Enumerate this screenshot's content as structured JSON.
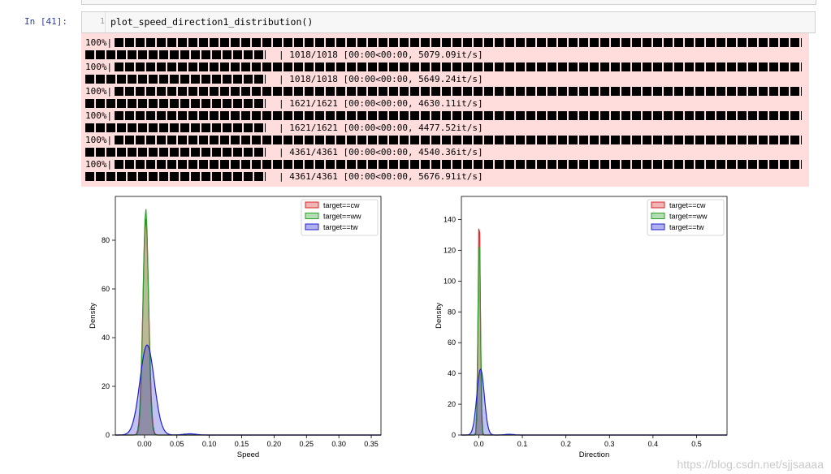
{
  "cell": {
    "prompt": "In  [41]:",
    "line_number": "1",
    "code": "plot_speed_direction1_distribution()"
  },
  "progress": [
    {
      "percent": "100%|",
      "stats": "| 1018/1018 [00:00<00:00, 5079.09it/s]"
    },
    {
      "percent": "100%|",
      "stats": "| 1018/1018 [00:00<00:00, 5649.24it/s]"
    },
    {
      "percent": "100%|",
      "stats": "| 1621/1621 [00:00<00:00, 4630.11it/s]"
    },
    {
      "percent": "100%|",
      "stats": "| 1621/1621 [00:00<00:00, 4477.52it/s]"
    },
    {
      "percent": "100%|",
      "stats": "| 4361/4361 [00:00<00:00, 4540.36it/s]"
    },
    {
      "percent": "100%|",
      "stats": "| 4361/4361 [00:00<00:00, 5676.91it/s]"
    }
  ],
  "chart_data": [
    {
      "type": "area",
      "xlabel": "Speed",
      "ylabel": "Density",
      "xlim": [
        -0.045,
        0.365
      ],
      "ylim": [
        0,
        98
      ],
      "xticks": [
        "0.00",
        "0.05",
        "0.10",
        "0.15",
        "0.20",
        "0.25",
        "0.30",
        "0.35"
      ],
      "xtick_values": [
        0,
        0.05,
        0.1,
        0.15,
        0.2,
        0.25,
        0.3,
        0.35
      ],
      "yticks": [
        "0",
        "20",
        "40",
        "60",
        "80"
      ],
      "ytick_values": [
        0,
        20,
        40,
        60,
        80
      ],
      "legend_position": "upper right",
      "series": [
        {
          "name": "target==cw",
          "color": "#d62728",
          "peak_x": 0.002,
          "peak": 89,
          "width": 0.0045
        },
        {
          "name": "target==ww",
          "color": "#2ca02c",
          "peak_x": 0.002,
          "peak": 93,
          "width": 0.0042
        },
        {
          "name": "target==tw",
          "color": "#1f1fd0",
          "peak_x": 0.004,
          "peak": 37,
          "width": 0.011
        }
      ]
    },
    {
      "type": "area",
      "xlabel": "Direction",
      "ylabel": "Density",
      "xlim": [
        -0.04,
        0.57
      ],
      "ylim": [
        0,
        155
      ],
      "xticks": [
        "0.0",
        "0.1",
        "0.2",
        "0.3",
        "0.4",
        "0.5"
      ],
      "xtick_values": [
        0,
        0.1,
        0.2,
        0.3,
        0.4,
        0.5
      ],
      "yticks": [
        "0",
        "20",
        "40",
        "60",
        "80",
        "100",
        "120",
        "140"
      ],
      "ytick_values": [
        0,
        20,
        40,
        60,
        80,
        100,
        120,
        140
      ],
      "legend_position": "upper right",
      "series": [
        {
          "name": "target==cw",
          "color": "#d62728",
          "peak_x": 0.001,
          "peak": 148,
          "width": 0.0025
        },
        {
          "name": "target==ww",
          "color": "#2ca02c",
          "peak_x": 0.001,
          "peak": 133,
          "width": 0.0028
        },
        {
          "name": "target==tw",
          "color": "#1f1fd0",
          "peak_x": 0.004,
          "peak": 43,
          "width": 0.0085
        }
      ]
    }
  ],
  "watermark": "https://blog.csdn.net/sjjsaaaa"
}
